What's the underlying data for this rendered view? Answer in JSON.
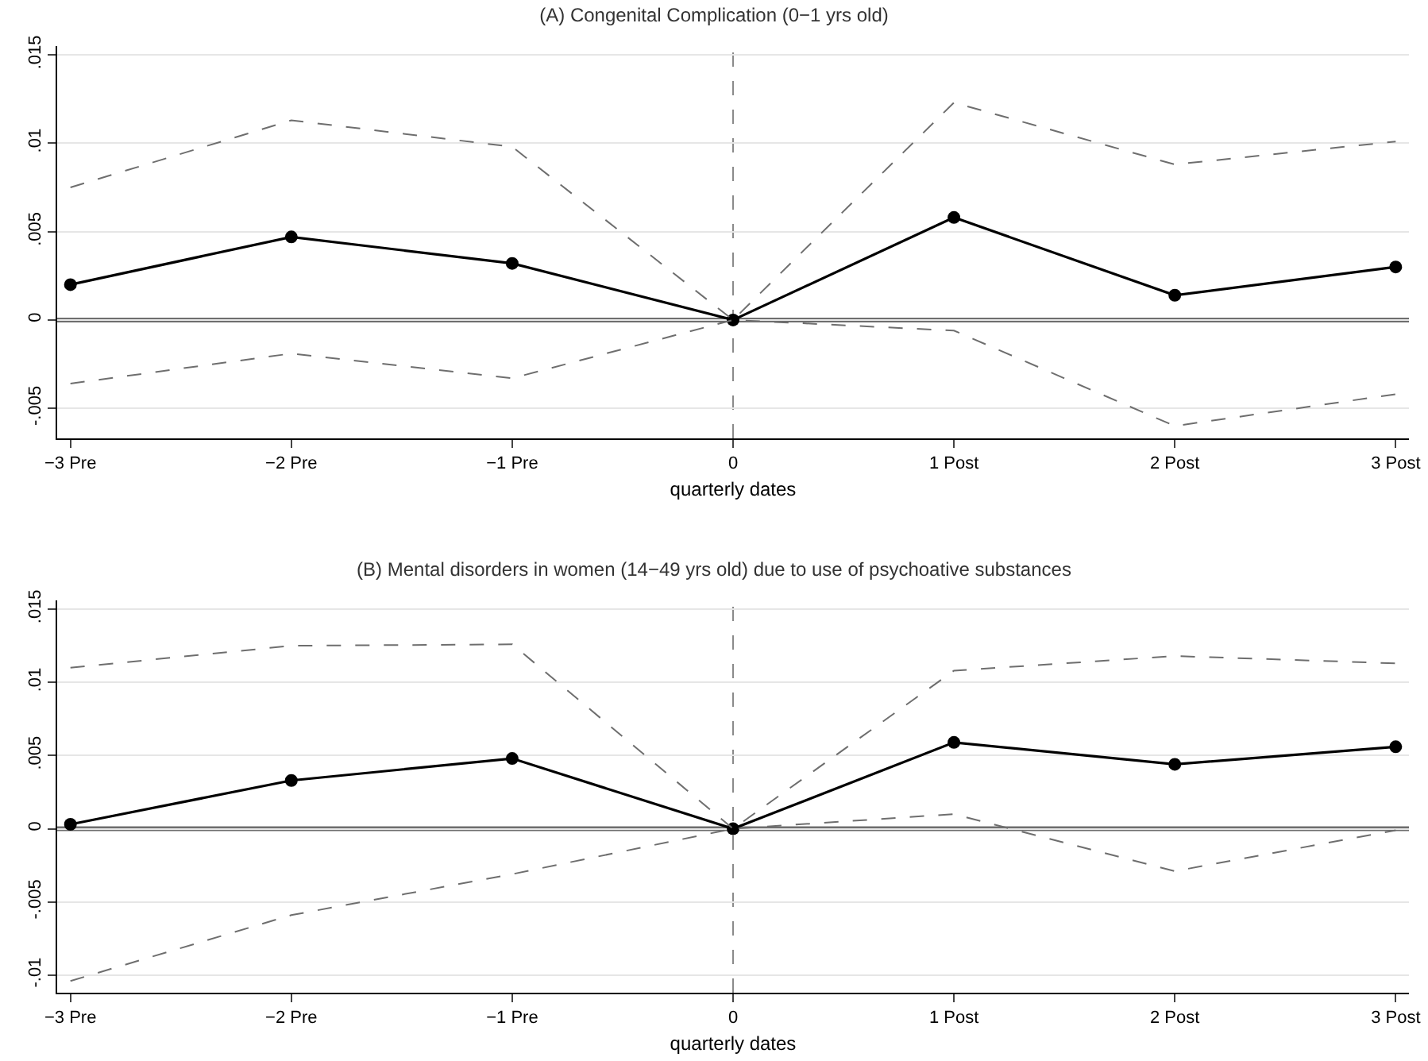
{
  "chart_data": [
    {
      "type": "line",
      "title": "(A) Congenital Complication (0−1 yrs old)",
      "xlabel": "quarterly dates",
      "categories": [
        "−3 Pre",
        "−2 Pre",
        "−1 Pre",
        "0",
        "1 Post",
        "2 Post",
        "3 Post"
      ],
      "series": [
        {
          "color": "#000000",
          "marker": "circle",
          "line_style": "solid",
          "values": [
            0.002,
            0.0047,
            0.0032,
            0,
            0.0058,
            0.0014,
            0.003
          ]
        },
        {
          "color": "#6e6e6e",
          "marker": "none",
          "line_style": "dashed",
          "values": [
            0.0075,
            0.0113,
            0.0098,
            0,
            0.0123,
            0.0088,
            0.0101
          ]
        },
        {
          "color": "#6e6e6e",
          "marker": "none",
          "line_style": "dashed",
          "values": [
            -0.0036,
            -0.0019,
            -0.0033,
            0,
            -0.0006,
            -0.006,
            -0.0042
          ]
        }
      ],
      "ylim": [
        -0.0067,
        0.0155
      ],
      "yticks": [
        {
          "value": -0.005,
          "label": "-.005"
        },
        0,
        {
          "value": 0.005,
          "label": ".005"
        },
        {
          "value": 0.01,
          "label": ".01"
        },
        {
          "value": 0.015,
          "label": ".015"
        }
      ],
      "ref_lines": [
        {
          "axis": "y",
          "value": 0,
          "color": "#6e6e6e",
          "line_style": "solid"
        },
        {
          "axis": "x",
          "value": "0",
          "color": "#8a8a8a",
          "line_style": "dashed"
        }
      ],
      "grid": "y"
    },
    {
      "type": "line",
      "title": "(B) Mental disorders in women (14−49 yrs old) due to use of psychoative substances",
      "xlabel": "quarterly dates",
      "categories": [
        "−3 Pre",
        "−2 Pre",
        "−1 Pre",
        "0",
        "1 Post",
        "2 Post",
        "3 Post"
      ],
      "series": [
        {
          "color": "#000000",
          "marker": "circle",
          "line_style": "solid",
          "values": [
            0.0003,
            0.0033,
            0.0048,
            0,
            0.0059,
            0.0044,
            0.0056
          ]
        },
        {
          "color": "#6e6e6e",
          "marker": "none",
          "line_style": "dashed",
          "values": [
            0.011,
            0.0125,
            0.0126,
            0,
            0.0108,
            0.0118,
            0.0113
          ]
        },
        {
          "color": "#6e6e6e",
          "marker": "none",
          "line_style": "dashed",
          "values": [
            -0.0104,
            -0.0059,
            -0.0031,
            0,
            0.001,
            -0.0029,
            -0.0001
          ]
        }
      ],
      "ylim": [
        -0.0112,
        0.0156
      ],
      "yticks": [
        {
          "value": -0.01,
          "label": "-.01"
        },
        {
          "value": -0.005,
          "label": "-.005"
        },
        0,
        {
          "value": 0.005,
          "label": ".005"
        },
        {
          "value": 0.01,
          "label": ".01"
        },
        {
          "value": 0.015,
          "label": ".015"
        }
      ],
      "ref_lines": [
        {
          "axis": "y",
          "value": 0,
          "color": "#6e6e6e",
          "line_style": "solid"
        },
        {
          "axis": "x",
          "value": "0",
          "color": "#8a8a8a",
          "line_style": "dashed"
        }
      ],
      "grid": "y"
    }
  ]
}
